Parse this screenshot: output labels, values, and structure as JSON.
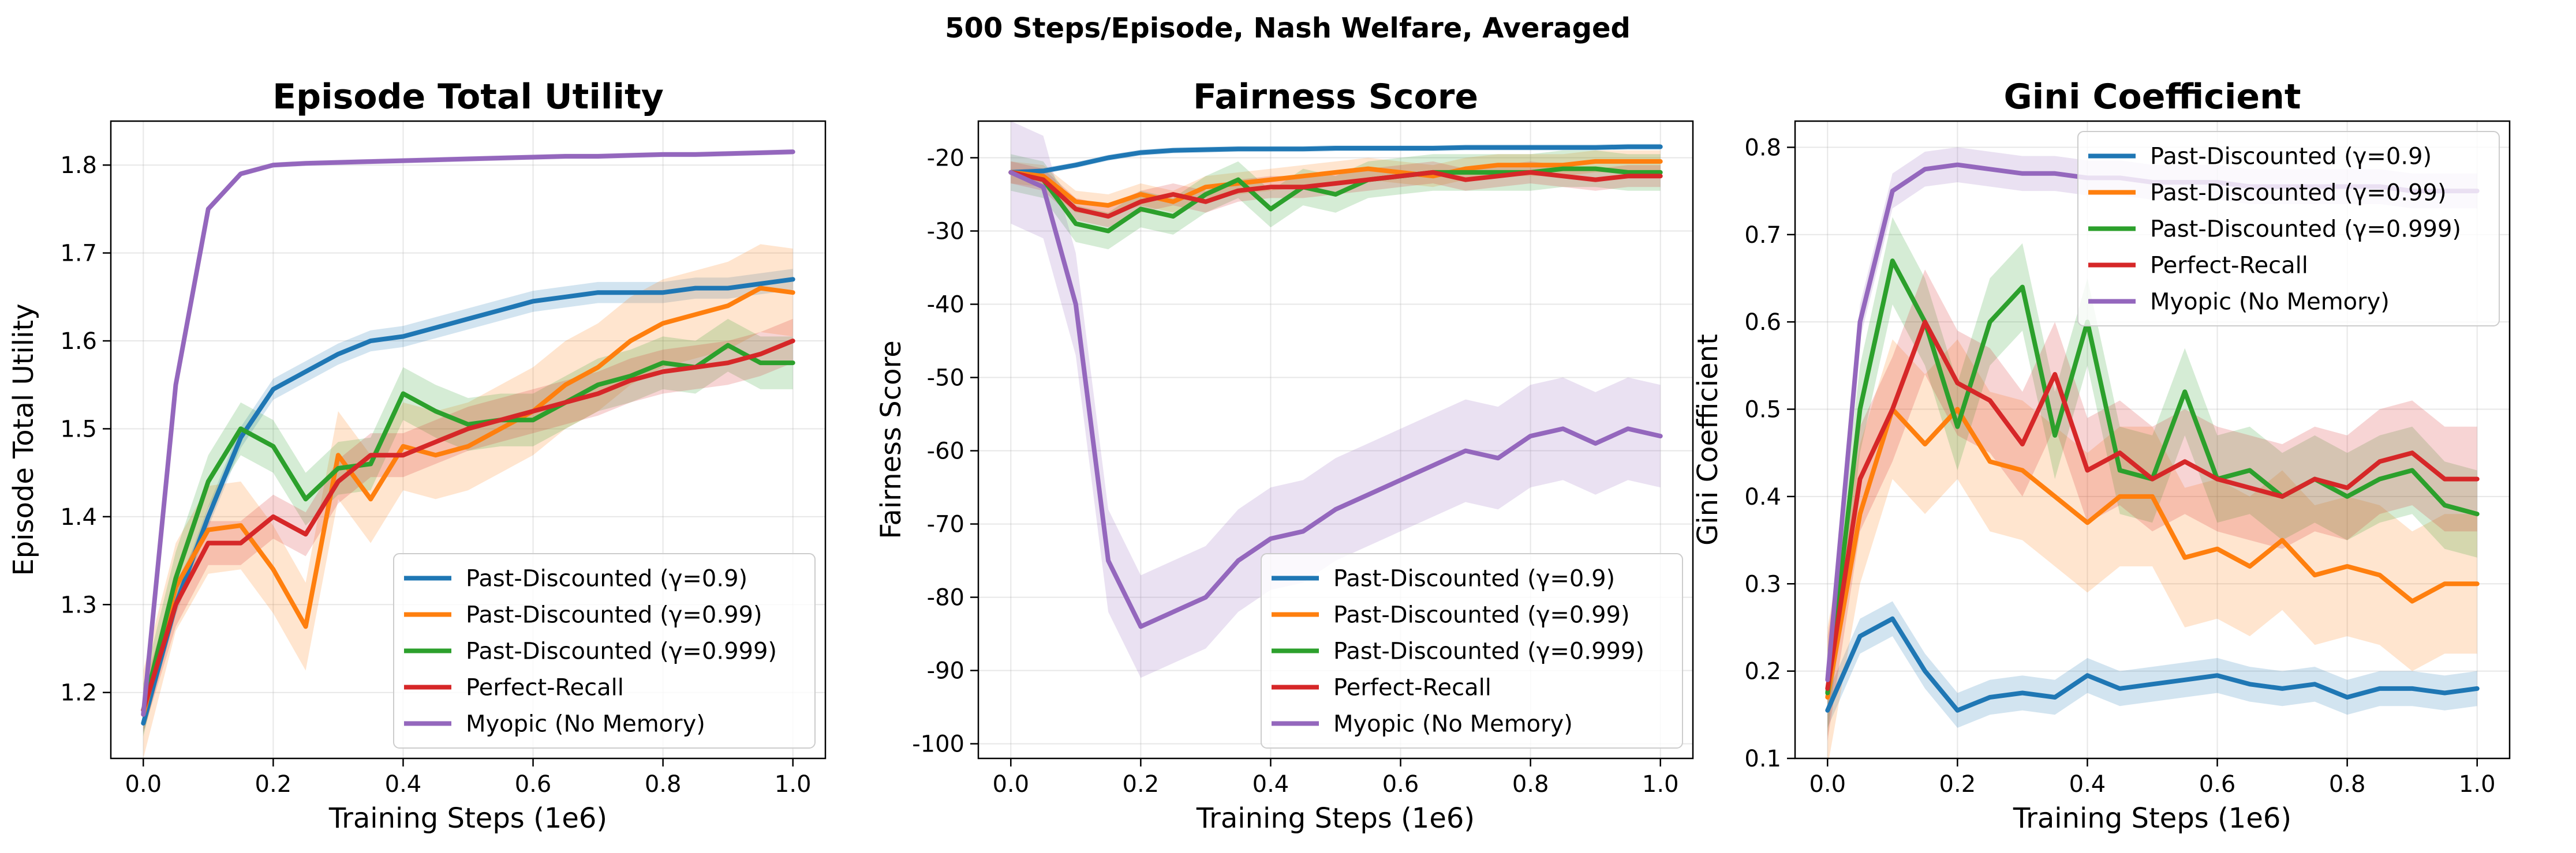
{
  "figure_title": "500 Steps/Episode, Nash Welfare, Averaged",
  "legend_labels": [
    "Past-Discounted (γ=0.9)",
    "Past-Discounted (γ=0.99)",
    "Past-Discounted (γ=0.999)",
    "Perfect-Recall",
    "Myopic (No Memory)"
  ],
  "series_colors": [
    "#1f77b4",
    "#ff7f0e",
    "#2ca02c",
    "#d62728",
    "#9467bd"
  ],
  "chart_data": [
    {
      "type": "line",
      "title": "Episode Total Utility",
      "xlabel": "Training Steps (1e6)",
      "ylabel": "Episode Total Utility",
      "xlim": [
        -0.05,
        1.05
      ],
      "ylim": [
        1.125,
        1.85
      ],
      "xticks": [
        "0.0",
        "0.2",
        "0.4",
        "0.6",
        "0.8",
        "1.0"
      ],
      "yticks": [
        "1.2",
        "1.3",
        "1.4",
        "1.5",
        "1.6",
        "1.7",
        "1.8"
      ],
      "legend_position": "lower-right",
      "x": [
        0.0,
        0.05,
        0.1,
        0.15,
        0.2,
        0.25,
        0.3,
        0.35,
        0.4,
        0.45,
        0.5,
        0.55,
        0.6,
        0.65,
        0.7,
        0.75,
        0.8,
        0.85,
        0.9,
        0.95,
        1.0
      ],
      "series": [
        {
          "name": "Past-Discounted (γ=0.9)",
          "values": [
            1.165,
            1.3,
            1.4,
            1.49,
            1.545,
            1.565,
            1.585,
            1.6,
            1.605,
            1.615,
            1.625,
            1.635,
            1.645,
            1.65,
            1.655,
            1.655,
            1.655,
            1.66,
            1.66,
            1.665,
            1.67
          ],
          "band": 0.012
        },
        {
          "name": "Past-Discounted (γ=0.99)",
          "values": [
            1.175,
            1.32,
            1.385,
            1.39,
            1.34,
            1.275,
            1.47,
            1.42,
            1.48,
            1.47,
            1.48,
            1.5,
            1.52,
            1.55,
            1.57,
            1.6,
            1.62,
            1.63,
            1.64,
            1.66,
            1.655
          ],
          "band": 0.05
        },
        {
          "name": "Past-Discounted (γ=0.999)",
          "values": [
            1.18,
            1.33,
            1.44,
            1.5,
            1.48,
            1.42,
            1.455,
            1.46,
            1.54,
            1.52,
            1.505,
            1.51,
            1.51,
            1.53,
            1.55,
            1.56,
            1.575,
            1.57,
            1.595,
            1.575,
            1.575
          ],
          "band": 0.03
        },
        {
          "name": "Perfect-Recall",
          "values": [
            1.18,
            1.3,
            1.37,
            1.37,
            1.4,
            1.38,
            1.44,
            1.47,
            1.47,
            1.485,
            1.5,
            1.51,
            1.52,
            1.53,
            1.54,
            1.555,
            1.565,
            1.57,
            1.575,
            1.585,
            1.6
          ],
          "band": 0.025
        },
        {
          "name": "Myopic (No Memory)",
          "values": [
            1.175,
            1.55,
            1.75,
            1.79,
            1.8,
            1.802,
            1.803,
            1.804,
            1.805,
            1.806,
            1.807,
            1.808,
            1.809,
            1.81,
            1.81,
            1.811,
            1.812,
            1.812,
            1.813,
            1.814,
            1.815
          ],
          "band": 0.003
        }
      ]
    },
    {
      "type": "line",
      "title": "Fairness Score",
      "xlabel": "Training Steps (1e6)",
      "ylabel": "Fairness Score",
      "xlim": [
        -0.05,
        1.05
      ],
      "ylim": [
        -102,
        -15
      ],
      "xticks": [
        "0.0",
        "0.2",
        "0.4",
        "0.6",
        "0.8",
        "1.0"
      ],
      "yticks": [
        "-20",
        "-30",
        "-40",
        "-50",
        "-60",
        "-70",
        "-80",
        "-90",
        "-100"
      ],
      "legend_position": "lower-right",
      "x": [
        0.0,
        0.05,
        0.1,
        0.15,
        0.2,
        0.25,
        0.3,
        0.35,
        0.4,
        0.45,
        0.5,
        0.55,
        0.6,
        0.65,
        0.7,
        0.75,
        0.8,
        0.85,
        0.9,
        0.95,
        1.0
      ],
      "series": [
        {
          "name": "Past-Discounted (γ=0.9)",
          "values": [
            -22,
            -21.8,
            -21,
            -20,
            -19.3,
            -19,
            -18.9,
            -18.8,
            -18.8,
            -18.8,
            -18.7,
            -18.7,
            -18.7,
            -18.7,
            -18.6,
            -18.6,
            -18.6,
            -18.6,
            -18.6,
            -18.5,
            -18.5
          ],
          "band": 0.4
        },
        {
          "name": "Past-Discounted (γ=0.99)",
          "values": [
            -22,
            -22.5,
            -26,
            -26.5,
            -25,
            -26,
            -24,
            -23.5,
            -23,
            -22.5,
            -22,
            -21.5,
            -22,
            -22.5,
            -21.5,
            -21,
            -21,
            -21,
            -20.5,
            -20.5,
            -20.5
          ],
          "band": 1.5
        },
        {
          "name": "Past-Discounted (γ=0.999)",
          "values": [
            -22,
            -23,
            -29,
            -30,
            -27,
            -28,
            -25,
            -23,
            -27,
            -24,
            -25,
            -23,
            -22.5,
            -22,
            -22,
            -22,
            -22,
            -21.5,
            -21.5,
            -22,
            -22
          ],
          "band": 2.5
        },
        {
          "name": "Perfect-Recall",
          "values": [
            -22,
            -23,
            -27,
            -28,
            -26,
            -25,
            -26,
            -24.5,
            -24,
            -24,
            -23.5,
            -23,
            -22.5,
            -22,
            -23,
            -22.5,
            -22,
            -22.5,
            -23,
            -22.5,
            -22.5
          ],
          "band": 1.5
        },
        {
          "name": "Myopic (No Memory)",
          "values": [
            -22,
            -24,
            -40,
            -75,
            -84,
            -82,
            -80,
            -75,
            -72,
            -71,
            -68,
            -66,
            -64,
            -62,
            -60,
            -61,
            -58,
            -57,
            -59,
            -57,
            -58
          ],
          "band": 7
        }
      ]
    },
    {
      "type": "line",
      "title": "Gini Coefficient",
      "xlabel": "Training Steps (1e6)",
      "ylabel": "Gini Coefficient",
      "xlim": [
        -0.05,
        1.05
      ],
      "ylim": [
        0.1,
        0.83
      ],
      "xticks": [
        "0.0",
        "0.2",
        "0.4",
        "0.6",
        "0.8",
        "1.0"
      ],
      "yticks": [
        "0.1",
        "0.2",
        "0.3",
        "0.4",
        "0.5",
        "0.6",
        "0.7",
        "0.8"
      ],
      "legend_position": "upper-right",
      "x": [
        0.0,
        0.05,
        0.1,
        0.15,
        0.2,
        0.25,
        0.3,
        0.35,
        0.4,
        0.45,
        0.5,
        0.55,
        0.6,
        0.65,
        0.7,
        0.75,
        0.8,
        0.85,
        0.9,
        0.95,
        1.0
      ],
      "series": [
        {
          "name": "Past-Discounted (γ=0.9)",
          "values": [
            0.155,
            0.24,
            0.26,
            0.2,
            0.155,
            0.17,
            0.175,
            0.17,
            0.195,
            0.18,
            0.185,
            0.19,
            0.195,
            0.185,
            0.18,
            0.185,
            0.17,
            0.18,
            0.18,
            0.175,
            0.18
          ],
          "band": 0.02
        },
        {
          "name": "Past-Discounted (γ=0.99)",
          "values": [
            0.17,
            0.38,
            0.5,
            0.46,
            0.5,
            0.44,
            0.43,
            0.4,
            0.37,
            0.4,
            0.4,
            0.33,
            0.34,
            0.32,
            0.35,
            0.31,
            0.32,
            0.31,
            0.28,
            0.3,
            0.3
          ],
          "band": 0.08
        },
        {
          "name": "Past-Discounted (γ=0.999)",
          "values": [
            0.175,
            0.5,
            0.67,
            0.6,
            0.48,
            0.6,
            0.64,
            0.47,
            0.6,
            0.43,
            0.42,
            0.52,
            0.42,
            0.43,
            0.4,
            0.42,
            0.4,
            0.42,
            0.43,
            0.39,
            0.38
          ],
          "band": 0.05
        },
        {
          "name": "Perfect-Recall",
          "values": [
            0.18,
            0.42,
            0.5,
            0.6,
            0.53,
            0.51,
            0.46,
            0.54,
            0.43,
            0.45,
            0.42,
            0.44,
            0.42,
            0.41,
            0.4,
            0.42,
            0.41,
            0.44,
            0.45,
            0.42,
            0.42
          ],
          "band": 0.06
        },
        {
          "name": "Myopic (No Memory)",
          "values": [
            0.19,
            0.6,
            0.75,
            0.775,
            0.78,
            0.775,
            0.77,
            0.77,
            0.765,
            0.765,
            0.76,
            0.76,
            0.76,
            0.755,
            0.755,
            0.755,
            0.755,
            0.755,
            0.75,
            0.75,
            0.75
          ],
          "band": 0.02
        }
      ]
    }
  ]
}
